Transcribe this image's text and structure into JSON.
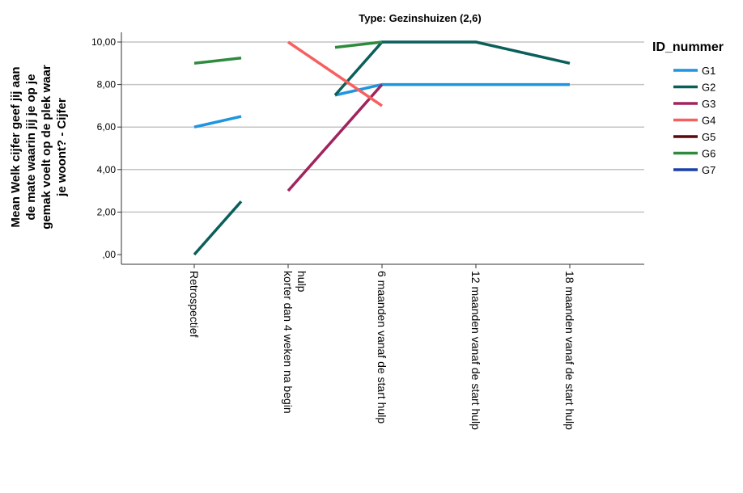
{
  "chart_data": {
    "type": "line",
    "title": "Type: Gezinshuizen (2,6)",
    "ylabel_lines": [
      "Mean Welk cijfer geef jij aan",
      "de mate waarin jij je op je",
      "gemak voelt op de plek waar",
      "je woont? - Cijfer"
    ],
    "yticks": [
      ",00",
      "2,00",
      "4,00",
      "6,00",
      "8,00",
      "10,00"
    ],
    "ylim": [
      0,
      10
    ],
    "grid": true,
    "legend_title": "ID_nummer",
    "legend_position": "right",
    "categories": [
      {
        "lines": [
          "Retrospectief"
        ]
      },
      {
        "lines": [
          "korter dan 4 weken na begin",
          "hulp"
        ]
      },
      {
        "lines": [
          "6 maanden vanaf de start hulp"
        ]
      },
      {
        "lines": [
          "12 maanden vanaf de start hulp"
        ]
      },
      {
        "lines": [
          "18 maanden vanaf de start hulp"
        ]
      }
    ],
    "series": [
      {
        "name": "G1",
        "color": "#1f94e0",
        "segments": [
          [
            [
              0,
              6.0
            ],
            [
              0.5,
              6.5
            ]
          ],
          [
            [
              1.5,
              7.5
            ],
            [
              2,
              8.0
            ],
            [
              3,
              8.0
            ],
            [
              4,
              8.0
            ]
          ]
        ]
      },
      {
        "name": "G2",
        "color": "#0a5f5a",
        "segments": [
          [
            [
              0,
              0.0
            ],
            [
              0.5,
              2.5
            ]
          ],
          [
            [
              1.5,
              7.5
            ],
            [
              2,
              10.0
            ],
            [
              3,
              10.0
            ],
            [
              4,
              9.0
            ]
          ]
        ]
      },
      {
        "name": "G3",
        "color": "#a0245e",
        "segments": [
          [
            [
              1,
              3.0
            ],
            [
              2,
              8.0
            ]
          ]
        ]
      },
      {
        "name": "G4",
        "color": "#f56060",
        "segments": [
          [
            [
              1,
              10.0
            ],
            [
              2,
              7.0
            ]
          ]
        ]
      },
      {
        "name": "G5",
        "color": "#5a0a0a",
        "segments": []
      },
      {
        "name": "G6",
        "color": "#2e8b3e",
        "segments": [
          [
            [
              0,
              9.0
            ],
            [
              0.5,
              9.25
            ]
          ],
          [
            [
              1.5,
              9.75
            ],
            [
              2,
              10.0
            ]
          ]
        ]
      },
      {
        "name": "G7",
        "color": "#1a3fa8",
        "segments": []
      }
    ]
  }
}
